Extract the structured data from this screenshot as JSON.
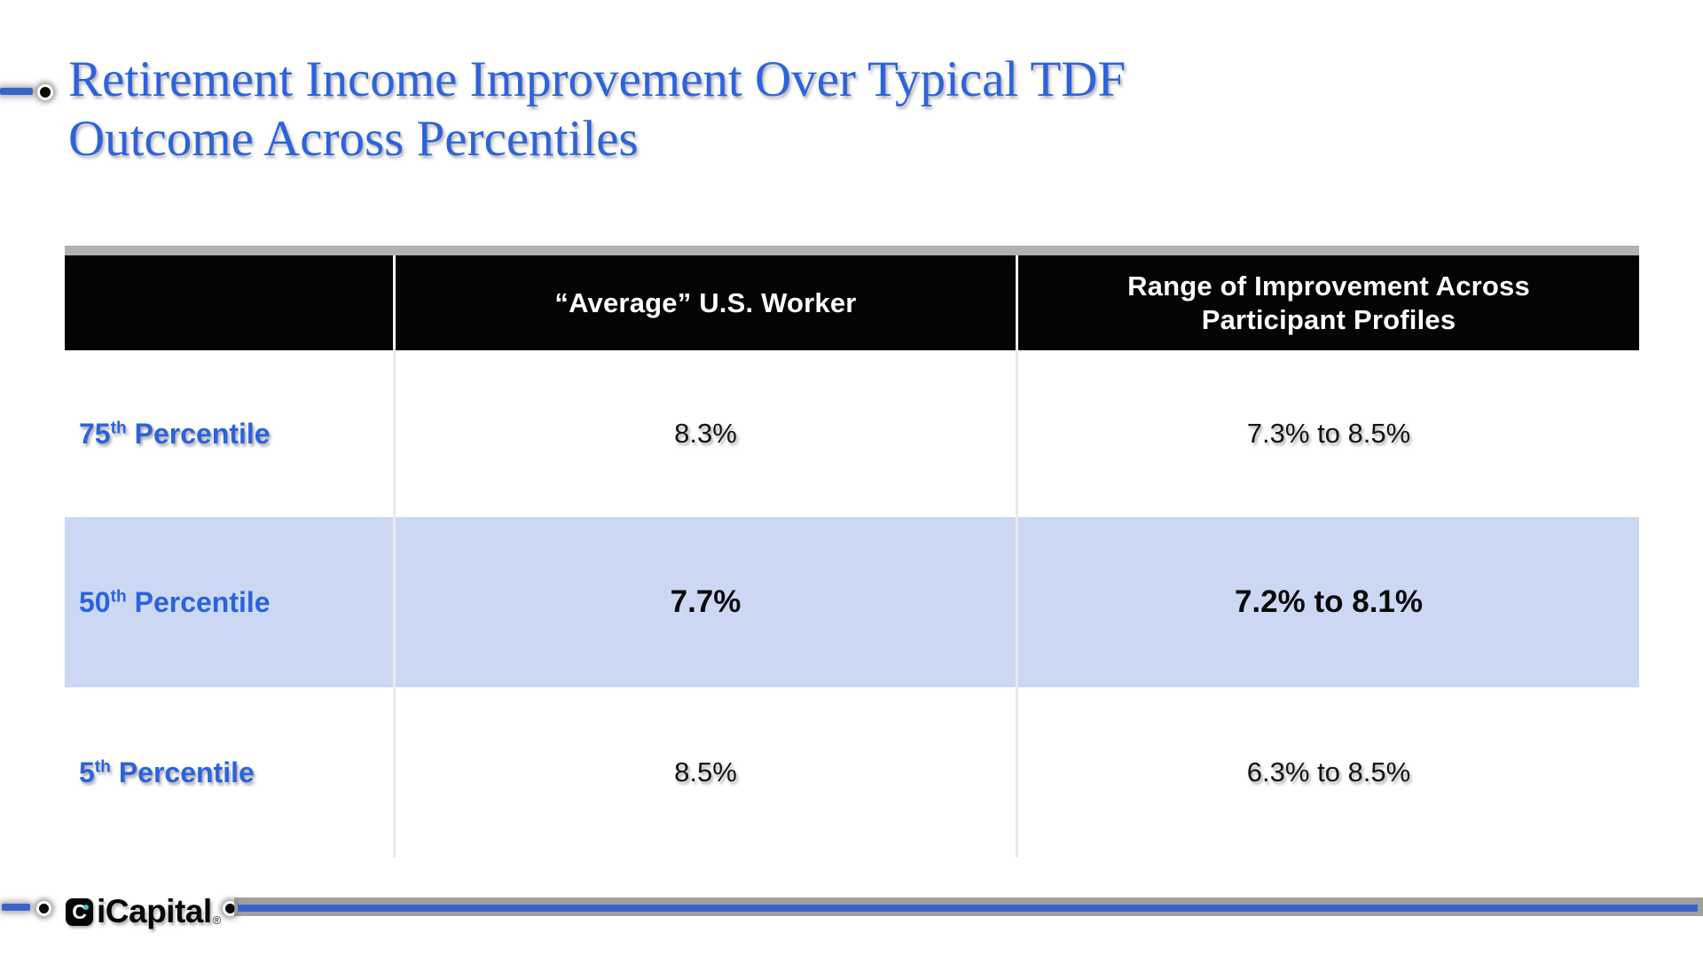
{
  "title": {
    "line1": "Retirement Income Improvement Over Typical TDF",
    "line2": "Outcome Across Percentiles"
  },
  "table": {
    "header": {
      "col1": "",
      "col2": "“Average” U.S. Worker",
      "col3_line1": "Range of Improvement Across",
      "col3_line2": "Participant Profiles"
    },
    "rows": [
      {
        "num": "75",
        "sup": "th",
        "label": " Percentile",
        "average": "8.3%",
        "range": "7.3% to 8.5%",
        "highlighted": false
      },
      {
        "num": "50",
        "sup": "th",
        "label": " Percentile",
        "average": "7.7%",
        "range": "7.2% to 8.1%",
        "highlighted": true
      },
      {
        "num": "5",
        "sup": "th",
        "label": " Percentile",
        "average": "8.5%",
        "range": "6.3% to 8.5%",
        "highlighted": false
      }
    ]
  },
  "footer": {
    "brand": "iCapital",
    "brand_mark": "®",
    "badge_glyph": "C"
  },
  "colors": {
    "title_blue": "#2d63da",
    "label_blue": "#2b63dc",
    "highlight_row": "#ccd8f3",
    "header_bg": "#040404",
    "header_text": "#ffffff",
    "accent_line_blue": "#3a64ca",
    "gray_strip": "#b2b2b2"
  },
  "chart_data": {
    "type": "table",
    "title": "Retirement Income Improvement Over Typical TDF Outcome Across Percentiles",
    "columns": [
      "",
      "“Average” U.S. Worker",
      "Range of Improvement Across Participant Profiles"
    ],
    "rows": [
      [
        "75th Percentile",
        "8.3%",
        "7.3% to 8.5%"
      ],
      [
        "50th Percentile",
        "7.7%",
        "7.2% to 8.1%"
      ],
      [
        "5th Percentile",
        "8.5%",
        "6.3% to 8.5%"
      ]
    ]
  }
}
